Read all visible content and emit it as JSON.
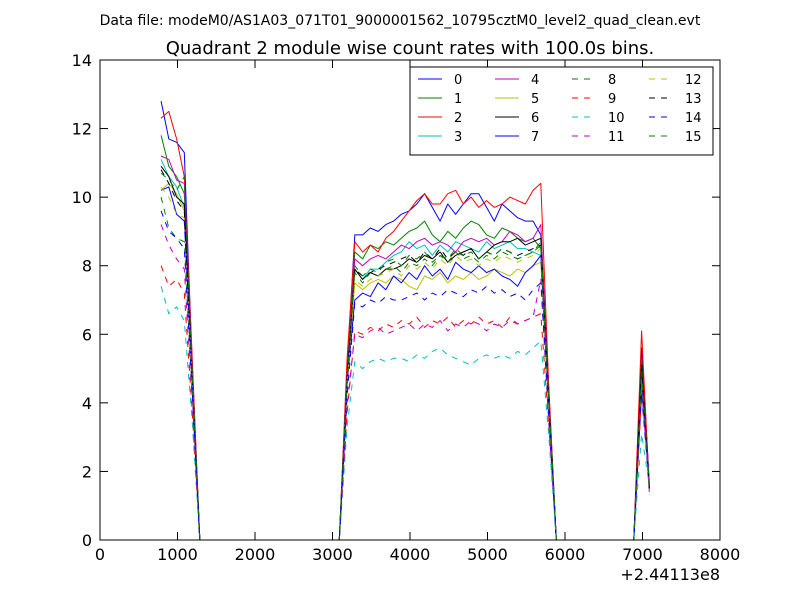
{
  "chart_data": {
    "type": "line",
    "suptitle": "Data file: modeM0/AS1A03_071T01_9000001562_10795cztM0_level2_quad_clean.evt",
    "title": "Quadrant 2 module wise count rates with 100.0s bins.",
    "xlabel": "",
    "ylabel": "",
    "x_offset_label": "+2.44113e8",
    "xlim": [
      0,
      8000
    ],
    "ylim": [
      0,
      14
    ],
    "x_ticks": [
      0,
      1000,
      2000,
      3000,
      4000,
      5000,
      6000,
      7000,
      8000
    ],
    "y_ticks": [
      0,
      2,
      4,
      6,
      8,
      10,
      12,
      14
    ],
    "grid": false,
    "legend_position": "top-right",
    "legend_columns": 4,
    "x": [
      788,
      888,
      988,
      1088,
      1188,
      1288,
      1388,
      1488,
      1588,
      1688,
      1788,
      1888,
      1988,
      2088,
      2188,
      2288,
      2388,
      2488,
      2588,
      2688,
      2788,
      2888,
      2988,
      3088,
      3188,
      3288,
      3388,
      3488,
      3588,
      3688,
      3788,
      3888,
      3988,
      4088,
      4188,
      4288,
      4388,
      4488,
      4588,
      4688,
      4788,
      4888,
      4988,
      5088,
      5188,
      5288,
      5388,
      5488,
      5588,
      5688,
      5788,
      5888,
      5988,
      6088,
      6188,
      6288,
      6388,
      6488,
      6588,
      6688,
      6788,
      6888,
      6988,
      7088
    ],
    "series": [
      {
        "name": "0",
        "color": "#0000ff",
        "style": "solid",
        "values": [
          12.8,
          11.7,
          11.6,
          11.3,
          5.2,
          0,
          0,
          0,
          0,
          0,
          0,
          0,
          0,
          0,
          0,
          0,
          0,
          0,
          0,
          0,
          0,
          0,
          0,
          0,
          5.0,
          8.9,
          8.9,
          9.1,
          9.0,
          9.2,
          9.3,
          9.5,
          9.6,
          9.8,
          10.1,
          9.7,
          9.3,
          9.8,
          9.5,
          9.8,
          10.1,
          10.1,
          9.7,
          9.3,
          9.8,
          9.6,
          9.4,
          9.3,
          9.3,
          8.9,
          4.5,
          0,
          0,
          0,
          0,
          0,
          0,
          0,
          0,
          0,
          0,
          0,
          5.6,
          1.7
        ]
      },
      {
        "name": "1",
        "color": "#008000",
        "style": "solid",
        "values": [
          11.8,
          10.9,
          10.6,
          10.1,
          5.1,
          0,
          0,
          0,
          0,
          0,
          0,
          0,
          0,
          0,
          0,
          0,
          0,
          0,
          0,
          0,
          0,
          0,
          0,
          0,
          4.9,
          8.4,
          8.2,
          8.6,
          8.5,
          8.7,
          8.6,
          8.8,
          9.0,
          9.1,
          9.3,
          8.9,
          8.7,
          9.0,
          8.8,
          9.1,
          9.3,
          9.2,
          8.9,
          8.8,
          9.1,
          9.0,
          8.8,
          8.7,
          8.8,
          8.5,
          4.2,
          0,
          0,
          0,
          0,
          0,
          0,
          0,
          0,
          0,
          0,
          0,
          5.3,
          1.6
        ]
      },
      {
        "name": "2",
        "color": "#ff0000",
        "style": "solid",
        "values": [
          12.3,
          12.5,
          11.7,
          10.6,
          5.4,
          0,
          0,
          0,
          0,
          0,
          0,
          0,
          0,
          0,
          0,
          0,
          0,
          0,
          0,
          0,
          0,
          0,
          0,
          0,
          5.3,
          8.7,
          8.4,
          8.6,
          8.4,
          8.8,
          9.0,
          9.3,
          9.6,
          9.9,
          10.1,
          9.8,
          9.8,
          10.1,
          10.2,
          9.8,
          10.0,
          9.7,
          9.9,
          9.7,
          9.8,
          10.0,
          9.9,
          9.8,
          10.2,
          10.4,
          4.6,
          0,
          0,
          0,
          0,
          0,
          0,
          0,
          0,
          0,
          0,
          0,
          6.1,
          1.5
        ]
      },
      {
        "name": "3",
        "color": "#00bfbf",
        "style": "solid",
        "values": [
          11.1,
          10.6,
          10.3,
          9.7,
          5.0,
          0,
          0,
          0,
          0,
          0,
          0,
          0,
          0,
          0,
          0,
          0,
          0,
          0,
          0,
          0,
          0,
          0,
          0,
          0,
          4.8,
          7.9,
          7.6,
          7.9,
          7.9,
          8.1,
          8.3,
          8.4,
          8.7,
          8.5,
          8.6,
          8.3,
          8.6,
          8.4,
          8.7,
          8.6,
          8.5,
          8.4,
          8.7,
          8.5,
          8.6,
          8.7,
          8.5,
          8.5,
          8.4,
          8.3,
          4.1,
          0,
          0,
          0,
          0,
          0,
          0,
          0,
          0,
          0,
          0,
          0,
          4.9,
          1.6
        ]
      },
      {
        "name": "4",
        "color": "#bf00bf",
        "style": "solid",
        "values": [
          11.2,
          11.1,
          10.5,
          10.4,
          5.0,
          0,
          0,
          0,
          0,
          0,
          0,
          0,
          0,
          0,
          0,
          0,
          0,
          0,
          0,
          0,
          0,
          0,
          0,
          0,
          4.8,
          8.2,
          8.0,
          8.2,
          8.3,
          8.2,
          8.4,
          8.6,
          8.5,
          8.7,
          8.8,
          8.6,
          8.7,
          8.6,
          8.4,
          8.7,
          8.8,
          8.7,
          8.8,
          8.6,
          8.7,
          9.0,
          8.9,
          8.7,
          8.8,
          9.2,
          4.3,
          0,
          0,
          0,
          0,
          0,
          0,
          0,
          0,
          0,
          0,
          0,
          5.0,
          1.4
        ]
      },
      {
        "name": "5",
        "color": "#bfbf00",
        "style": "solid",
        "values": [
          10.2,
          10.4,
          10.1,
          9.6,
          4.9,
          0,
          0,
          0,
          0,
          0,
          0,
          0,
          0,
          0,
          0,
          0,
          0,
          0,
          0,
          0,
          0,
          0,
          0,
          0,
          4.6,
          7.5,
          7.3,
          7.5,
          7.6,
          7.5,
          7.7,
          7.6,
          7.4,
          7.3,
          7.7,
          7.6,
          7.8,
          7.5,
          7.7,
          7.6,
          7.8,
          7.6,
          7.7,
          7.9,
          7.8,
          7.7,
          7.9,
          7.8,
          8.0,
          8.1,
          4.0,
          0,
          0,
          0,
          0,
          0,
          0,
          0,
          0,
          0,
          0,
          0,
          4.7,
          1.5
        ]
      },
      {
        "name": "6",
        "color": "#000000",
        "style": "solid",
        "values": [
          10.9,
          10.6,
          10.0,
          9.8,
          4.9,
          0,
          0,
          0,
          0,
          0,
          0,
          0,
          0,
          0,
          0,
          0,
          0,
          0,
          0,
          0,
          0,
          0,
          0,
          0,
          4.7,
          7.9,
          7.6,
          7.8,
          7.7,
          7.9,
          7.9,
          8.0,
          8.2,
          8.1,
          8.3,
          8.2,
          8.4,
          8.1,
          8.3,
          8.4,
          8.5,
          8.2,
          8.4,
          8.6,
          8.7,
          8.7,
          8.8,
          8.6,
          8.7,
          8.8,
          4.2,
          0,
          0,
          0,
          0,
          0,
          0,
          0,
          0,
          0,
          0,
          0,
          5.1,
          1.5
        ]
      },
      {
        "name": "7",
        "color": "#0000ff",
        "style": "solid",
        "values": [
          10.2,
          10.3,
          9.5,
          9.3,
          4.7,
          0,
          0,
          0,
          0,
          0,
          0,
          0,
          0,
          0,
          0,
          0,
          0,
          0,
          0,
          0,
          0,
          0,
          0,
          0,
          4.6,
          7.0,
          7.2,
          7.1,
          7.5,
          7.3,
          7.7,
          7.5,
          7.8,
          7.6,
          8.0,
          7.7,
          7.9,
          7.6,
          8.1,
          7.9,
          7.8,
          8.0,
          7.8,
          7.9,
          7.7,
          7.6,
          7.4,
          7.8,
          8.0,
          8.3,
          4.0,
          0,
          0,
          0,
          0,
          0,
          0,
          0,
          0,
          0,
          0,
          0,
          4.8,
          1.6
        ]
      },
      {
        "name": "8",
        "color": "#008000",
        "style": "dashed",
        "values": [
          10.0,
          9.1,
          8.8,
          8.7,
          4.5,
          0,
          0,
          0,
          0,
          0,
          0,
          0,
          0,
          0,
          0,
          0,
          0,
          0,
          0,
          0,
          0,
          0,
          0,
          0,
          4.5,
          7.8,
          7.5,
          7.8,
          7.7,
          7.9,
          8.0,
          7.8,
          8.1,
          8.0,
          8.2,
          8.0,
          8.3,
          8.1,
          8.4,
          8.2,
          8.3,
          8.1,
          8.3,
          8.2,
          8.4,
          8.3,
          8.2,
          8.3,
          8.4,
          8.6,
          4.1,
          0,
          0,
          0,
          0,
          0,
          0,
          0,
          0,
          0,
          0,
          0,
          4.6,
          1.5
        ]
      },
      {
        "name": "9",
        "color": "#ff0000",
        "style": "dashed",
        "values": [
          8.0,
          7.4,
          7.6,
          7.2,
          3.8,
          0,
          0,
          0,
          0,
          0,
          0,
          0,
          0,
          0,
          0,
          0,
          0,
          0,
          0,
          0,
          0,
          0,
          0,
          0,
          3.7,
          6.1,
          6.0,
          6.2,
          6.1,
          6.3,
          6.2,
          6.4,
          6.3,
          6.5,
          6.2,
          6.4,
          6.3,
          6.5,
          6.2,
          6.4,
          6.3,
          6.5,
          6.3,
          6.4,
          6.2,
          6.5,
          6.3,
          6.4,
          6.5,
          6.6,
          3.4,
          0,
          0,
          0,
          0,
          0,
          0,
          0,
          0,
          0,
          0,
          0,
          4.2,
          1.6
        ]
      },
      {
        "name": "10",
        "color": "#00bfbf",
        "style": "dashed",
        "values": [
          7.4,
          6.6,
          6.8,
          6.4,
          3.5,
          0,
          0,
          0,
          0,
          0,
          0,
          0,
          0,
          0,
          0,
          0,
          0,
          0,
          0,
          0,
          0,
          0,
          0,
          0,
          3.3,
          5.2,
          5.0,
          5.2,
          5.3,
          5.2,
          5.3,
          5.3,
          5.2,
          5.4,
          5.3,
          5.5,
          5.6,
          5.4,
          5.3,
          5.2,
          5.1,
          5.3,
          5.4,
          5.3,
          5.4,
          5.3,
          5.5,
          5.4,
          5.6,
          5.8,
          3.1,
          0,
          0,
          0,
          0,
          0,
          0,
          0,
          0,
          0,
          0,
          0,
          3.1,
          1.6
        ]
      },
      {
        "name": "11",
        "color": "#bf00bf",
        "style": "dashed",
        "values": [
          9.2,
          8.6,
          8.2,
          7.9,
          4.1,
          0,
          0,
          0,
          0,
          0,
          0,
          0,
          0,
          0,
          0,
          0,
          0,
          0,
          0,
          0,
          0,
          0,
          0,
          0,
          3.9,
          6.0,
          5.9,
          6.1,
          6.2,
          6.0,
          6.1,
          6.2,
          6.3,
          6.1,
          6.3,
          6.2,
          6.4,
          6.1,
          6.3,
          6.2,
          6.4,
          6.3,
          6.1,
          6.3,
          6.2,
          6.4,
          6.3,
          6.4,
          6.5,
          7.6,
          3.5,
          0,
          0,
          0,
          0,
          0,
          0,
          0,
          0,
          0,
          0,
          0,
          4.4,
          1.6
        ]
      },
      {
        "name": "12",
        "color": "#bfbf00",
        "style": "dashed",
        "values": [
          10.3,
          10.0,
          9.5,
          9.4,
          4.7,
          0,
          0,
          0,
          0,
          0,
          0,
          0,
          0,
          0,
          0,
          0,
          0,
          0,
          0,
          0,
          0,
          0,
          0,
          0,
          4.5,
          7.6,
          7.4,
          7.6,
          7.7,
          7.8,
          7.9,
          7.7,
          8.0,
          7.9,
          8.1,
          7.9,
          8.2,
          8.0,
          8.3,
          8.1,
          8.2,
          8.0,
          8.2,
          8.1,
          8.3,
          8.2,
          8.1,
          8.2,
          8.3,
          8.5,
          4.0,
          0,
          0,
          0,
          0,
          0,
          0,
          0,
          0,
          0,
          0,
          0,
          4.7,
          1.5
        ]
      },
      {
        "name": "13",
        "color": "#000000",
        "style": "dashed",
        "values": [
          10.8,
          10.4,
          9.9,
          9.6,
          4.8,
          0,
          0,
          0,
          0,
          0,
          0,
          0,
          0,
          0,
          0,
          0,
          0,
          0,
          0,
          0,
          0,
          0,
          0,
          0,
          4.6,
          7.9,
          7.7,
          7.8,
          7.9,
          8.0,
          8.1,
          8.2,
          8.3,
          8.1,
          8.4,
          8.2,
          8.5,
          8.2,
          8.4,
          8.3,
          8.5,
          8.2,
          8.4,
          8.3,
          8.5,
          8.4,
          8.3,
          8.4,
          8.5,
          8.6,
          4.2,
          0,
          0,
          0,
          0,
          0,
          0,
          0,
          0,
          0,
          0,
          0,
          5.0,
          1.5
        ]
      },
      {
        "name": "14",
        "color": "#0000ff",
        "style": "dashed",
        "values": [
          9.6,
          9.0,
          8.8,
          8.5,
          4.4,
          0,
          0,
          0,
          0,
          0,
          0,
          0,
          0,
          0,
          0,
          0,
          0,
          0,
          0,
          0,
          0,
          0,
          0,
          0,
          4.2,
          6.9,
          6.8,
          7.0,
          6.9,
          7.1,
          7.0,
          7.0,
          7.1,
          7.2,
          7.0,
          7.2,
          7.1,
          7.3,
          7.2,
          7.1,
          7.3,
          7.2,
          7.4,
          7.2,
          7.3,
          7.1,
          7.2,
          7.0,
          7.3,
          7.5,
          3.8,
          0,
          0,
          0,
          0,
          0,
          0,
          0,
          0,
          0,
          0,
          0,
          4.3,
          1.6
        ]
      },
      {
        "name": "15",
        "color": "#008000",
        "style": "dashed",
        "values": [
          10.7,
          10.5,
          10.2,
          10.6,
          4.9,
          0,
          0,
          0,
          0,
          0,
          0,
          0,
          0,
          0,
          0,
          0,
          0,
          0,
          0,
          0,
          0,
          0,
          0,
          0,
          4.7,
          8.0,
          7.7,
          7.9,
          7.8,
          8.1,
          8.2,
          8.0,
          8.3,
          8.2,
          8.4,
          8.1,
          8.3,
          8.2,
          8.5,
          8.3,
          8.4,
          8.2,
          8.4,
          8.3,
          8.5,
          8.4,
          8.2,
          8.3,
          8.4,
          8.7,
          4.3,
          0,
          0,
          0,
          0,
          0,
          0,
          0,
          0,
          0,
          0,
          0,
          4.9,
          1.6
        ]
      }
    ]
  }
}
